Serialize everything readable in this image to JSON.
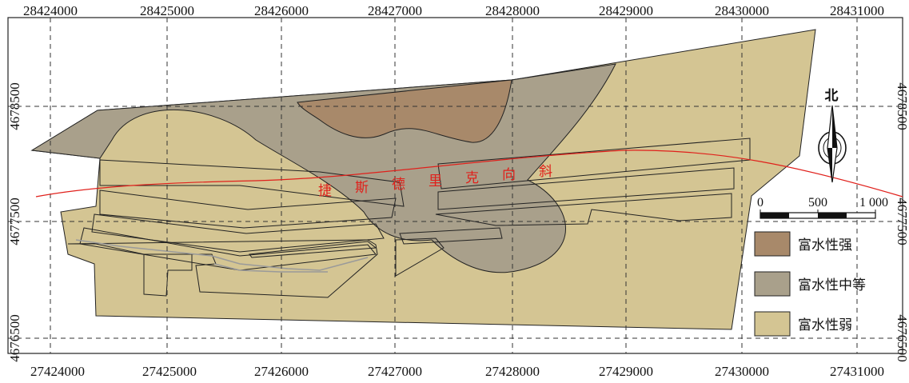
{
  "axes": {
    "top_ticks": [
      "28424000",
      "28425000",
      "28426000",
      "28427000",
      "28428000",
      "28429000",
      "28430000",
      "28431000"
    ],
    "bottom_ticks": [
      "27424000",
      "27425000",
      "27426000",
      "27427000",
      "27428000",
      "27429000",
      "27430000",
      "27431000"
    ],
    "left_ticks": [
      "4678500",
      "4677500",
      "4676500"
    ],
    "right_ticks": [
      "4678500",
      "4677500",
      "4676500"
    ]
  },
  "syncline_label": [
    "捷",
    "斯",
    "德",
    "里",
    "克",
    "向",
    "斜"
  ],
  "north_label": "北",
  "scale": {
    "labels": [
      "0",
      "500",
      "1 000"
    ]
  },
  "legend": [
    {
      "label": "富水性强",
      "color": "#a8896a"
    },
    {
      "label": "富水性中等",
      "color": "#a9a08b"
    },
    {
      "label": "富水性弱",
      "color": "#d4c593"
    }
  ]
}
